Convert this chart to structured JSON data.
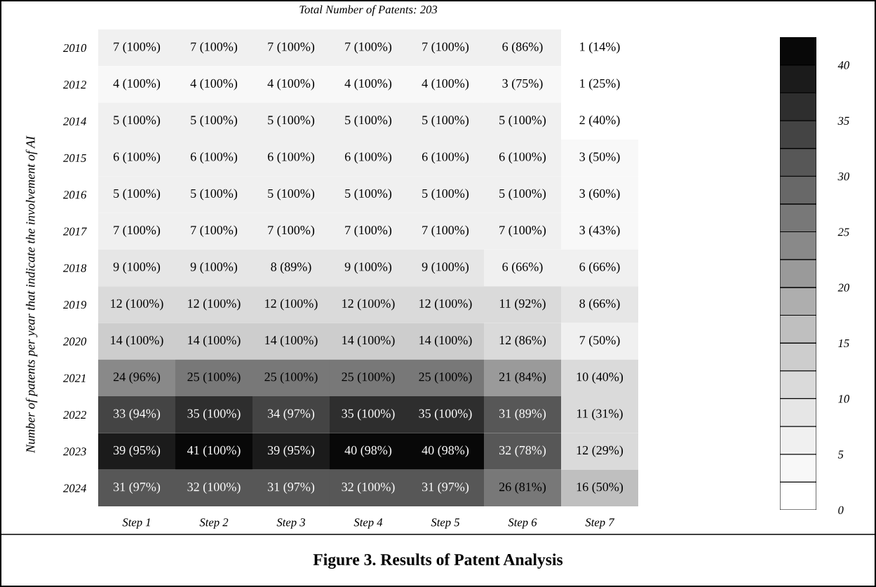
{
  "chart_data": {
    "type": "heatmap",
    "subtitle": "Total Number of Patents: 203",
    "title": "Figure 3. Results of Patent Analysis",
    "ylabel": "Number of patents per year that indicate the involvement of AI",
    "categories": [
      "Step 1",
      "Step 2",
      "Step 3",
      "Step 4",
      "Step 5",
      "Step 6",
      "Step 7"
    ],
    "y_categories": [
      "2010",
      "2012",
      "2014",
      "2015",
      "2016",
      "2017",
      "2018",
      "2019",
      "2020",
      "2021",
      "2022",
      "2023",
      "2024"
    ],
    "cells": [
      [
        7,
        7,
        7,
        7,
        7,
        6,
        1
      ],
      [
        4,
        4,
        4,
        4,
        4,
        3,
        1
      ],
      [
        5,
        5,
        5,
        5,
        5,
        5,
        2
      ],
      [
        6,
        6,
        6,
        6,
        6,
        6,
        3
      ],
      [
        5,
        5,
        5,
        5,
        5,
        5,
        3
      ],
      [
        7,
        7,
        7,
        7,
        7,
        7,
        3
      ],
      [
        9,
        9,
        8,
        9,
        9,
        6,
        6
      ],
      [
        12,
        12,
        12,
        12,
        12,
        11,
        8
      ],
      [
        14,
        14,
        14,
        14,
        14,
        12,
        7
      ],
      [
        24,
        25,
        25,
        25,
        25,
        21,
        10
      ],
      [
        33,
        35,
        34,
        35,
        35,
        31,
        11
      ],
      [
        39,
        41,
        39,
        40,
        40,
        32,
        12
      ],
      [
        31,
        32,
        31,
        32,
        31,
        26,
        16
      ]
    ],
    "cell_labels": [
      [
        "7 (100%)",
        "7 (100%)",
        "7 (100%)",
        "7 (100%)",
        "7 (100%)",
        "6 (86%)",
        "1 (14%)"
      ],
      [
        "4 (100%)",
        "4 (100%)",
        "4 (100%)",
        "4 (100%)",
        "4 (100%)",
        "3 (75%)",
        "1 (25%)"
      ],
      [
        "5 (100%)",
        "5 (100%)",
        "5 (100%)",
        "5 (100%)",
        "5 (100%)",
        "5 (100%)",
        "2 (40%)"
      ],
      [
        "6 (100%)",
        "6 (100%)",
        "6 (100%)",
        "6 (100%)",
        "6 (100%)",
        "6 (100%)",
        "3 (50%)"
      ],
      [
        "5 (100%)",
        "5 (100%)",
        "5 (100%)",
        "5 (100%)",
        "5 (100%)",
        "5 (100%)",
        "3 (60%)"
      ],
      [
        "7 (100%)",
        "7 (100%)",
        "7 (100%)",
        "7 (100%)",
        "7 (100%)",
        "7 (100%)",
        "3 (43%)"
      ],
      [
        "9 (100%)",
        "9 (100%)",
        "8 (89%)",
        "9 (100%)",
        "9 (100%)",
        "6 (66%)",
        "6 (66%)"
      ],
      [
        "12 (100%)",
        "12 (100%)",
        "12 (100%)",
        "12 (100%)",
        "12 (100%)",
        "11 (92%)",
        "8 (66%)"
      ],
      [
        "14 (100%)",
        "14 (100%)",
        "14 (100%)",
        "14 (100%)",
        "14 (100%)",
        "12 (86%)",
        "7 (50%)"
      ],
      [
        "24 (96%)",
        "25 (100%)",
        "25 (100%)",
        "25 (100%)",
        "25 (100%)",
        "21 (84%)",
        "10 (40%)"
      ],
      [
        "33 (94%)",
        "35 (100%)",
        "34 (97%)",
        "35 (100%)",
        "35 (100%)",
        "31 (89%)",
        "11 (31%)"
      ],
      [
        "39 (95%)",
        "41 (100%)",
        "39 (95%)",
        "40 (98%)",
        "40 (98%)",
        "32 (78%)",
        "12 (29%)"
      ],
      [
        "31 (97%)",
        "32 (100%)",
        "31 (97%)",
        "32 (100%)",
        "31 (97%)",
        "26 (81%)",
        "16 (50%)"
      ]
    ],
    "clim": [
      0,
      42.5
    ],
    "cticks": [
      0,
      5,
      10,
      15,
      20,
      25,
      30,
      35,
      40
    ]
  }
}
